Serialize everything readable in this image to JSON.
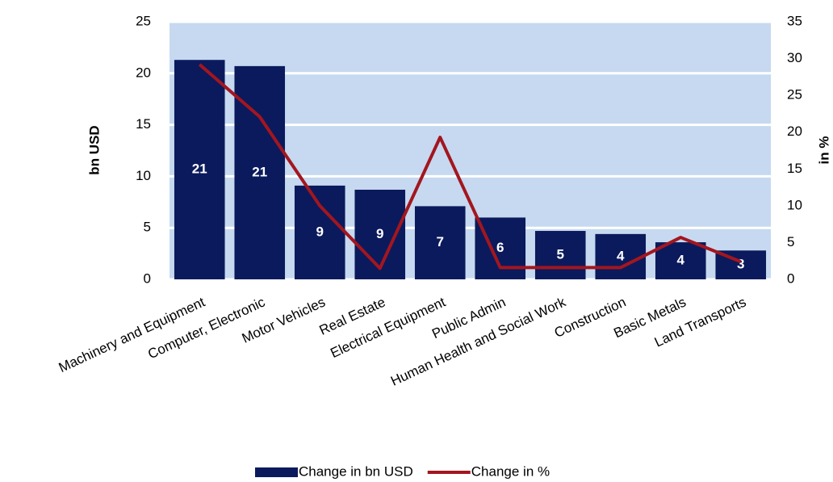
{
  "chart_data": {
    "type": "bar_line",
    "categories": [
      "Machinery and Equipment",
      "Computer, Electronic",
      "Motor Vehicles",
      "Real Estate",
      "Electrical Equipment",
      "Public Admin",
      "Human Health and Social Work",
      "Construction",
      "Basic Metals",
      "Land Transports"
    ],
    "y_label": "bn USD",
    "y2_label": "in %",
    "series": [
      {
        "name": "Change in bn USD",
        "color": "#0b1a5c",
        "type": "bar",
        "values": [
          21.3,
          20.7,
          9.1,
          8.7,
          7.1,
          6.0,
          4.7,
          4.4,
          3.6,
          2.8
        ],
        "value_labels": [
          "21",
          "21",
          "9",
          "9",
          "7",
          "6",
          "5",
          "4",
          "4",
          "3"
        ]
      },
      {
        "name": "Change in %",
        "color": "#a3161f",
        "type": "line",
        "axis": "y2",
        "values": [
          29.2,
          22.1,
          10.0,
          1.5,
          19.3,
          1.6,
          1.6,
          1.6,
          5.7,
          2.4
        ]
      }
    ],
    "ylim": [
      0,
      25
    ],
    "yticks": [
      0,
      5,
      10,
      15,
      20,
      25
    ],
    "y2lim": [
      0,
      35
    ],
    "y2ticks": [
      0,
      5,
      10,
      15,
      20,
      25,
      30,
      35
    ],
    "grid": true,
    "legend": "bottom",
    "plot_background": "#c6d9f0"
  }
}
